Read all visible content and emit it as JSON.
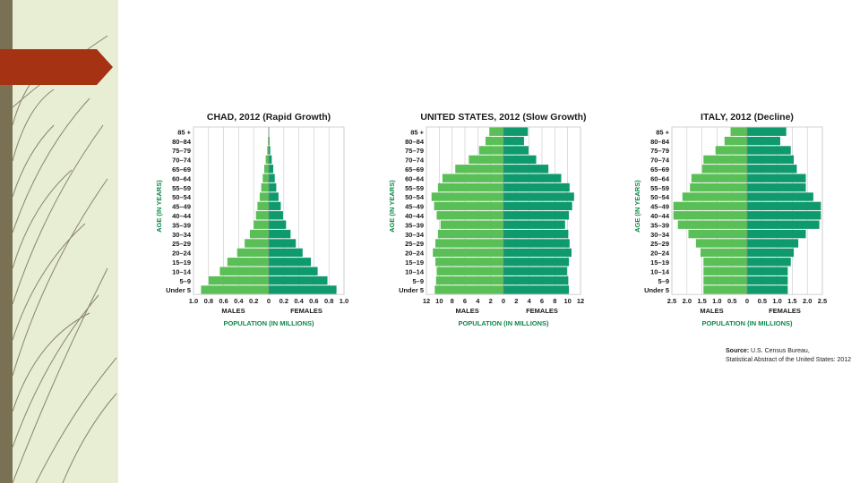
{
  "slide": {
    "source_label": "Source:",
    "source_line1": "U.S. Census Bureau,",
    "source_line2": "Statistical Abstract of the United States: 2012",
    "colors": {
      "male": "#5bbf57",
      "female": "#0f9a6e",
      "axis_text": "#1a1a1a",
      "green_label": "#0c8a4a",
      "grid": "#c8c8c8",
      "sidebar_bg": "#e7eed4",
      "sidebar_strip": "#7a7155",
      "accent": "#a63214"
    }
  },
  "chart_data": [
    {
      "type": "bar",
      "title": "CHAD, 2012 (Rapid Growth)",
      "ylabel": "AGE (IN YEARS)",
      "xlabel": "POPULATION (IN MILLIONS)",
      "male_label": "MALES",
      "female_label": "FEMALES",
      "categories": [
        "85 +",
        "80–84",
        "75–79",
        "70–74",
        "65–69",
        "60–64",
        "55–59",
        "50–54",
        "45–49",
        "40–44",
        "35–39",
        "30–34",
        "25–29",
        "20–24",
        "15–19",
        "10–14",
        "5–9",
        "Under 5"
      ],
      "series": [
        {
          "name": "MALES",
          "values": [
            0.005,
            0.01,
            0.02,
            0.04,
            0.06,
            0.08,
            0.1,
            0.12,
            0.15,
            0.17,
            0.2,
            0.25,
            0.32,
            0.42,
            0.55,
            0.65,
            0.8,
            0.9
          ]
        },
        {
          "name": "FEMALES",
          "values": [
            0.005,
            0.01,
            0.02,
            0.04,
            0.06,
            0.08,
            0.1,
            0.13,
            0.16,
            0.19,
            0.23,
            0.29,
            0.36,
            0.45,
            0.56,
            0.65,
            0.78,
            0.9
          ]
        }
      ],
      "ticks_left": [
        "1.0",
        "0.8",
        "0.6",
        "0.4",
        "0.2",
        "0"
      ],
      "ticks_right": [
        "0",
        "0.2",
        "0.4",
        "0.6",
        "0.8",
        "1.0"
      ],
      "xlim": [
        0,
        1.0
      ]
    },
    {
      "type": "bar",
      "title": "UNITED STATES, 2012 (Slow Growth)",
      "ylabel": "AGE (IN YEARS)",
      "xlabel": "POPULATION (IN MILLIONS)",
      "male_label": "MALES",
      "female_label": "FEMALES",
      "categories": [
        "85 +",
        "80–84",
        "75–79",
        "70–74",
        "65–69",
        "60–64",
        "55–59",
        "50–54",
        "45–49",
        "40–44",
        "35–39",
        "30–34",
        "25–29",
        "20–24",
        "15–19",
        "10–14",
        "5–9",
        "Under 5"
      ],
      "series": [
        {
          "name": "MALES",
          "values": [
            2.2,
            2.8,
            3.8,
            5.4,
            7.5,
            9.5,
            10.2,
            11.2,
            10.8,
            10.4,
            9.8,
            10.2,
            10.6,
            11.0,
            10.6,
            10.4,
            10.5,
            10.7
          ]
        },
        {
          "name": "FEMALES",
          "values": [
            3.8,
            3.2,
            3.9,
            5.1,
            7.0,
            9.0,
            10.3,
            11.0,
            10.7,
            10.2,
            9.6,
            10.1,
            10.3,
            10.6,
            10.2,
            9.9,
            10.1,
            10.2
          ]
        }
      ],
      "ticks_left": [
        "12",
        "10",
        "8",
        "6",
        "4",
        "2",
        "0"
      ],
      "ticks_right": [
        "0",
        "2",
        "4",
        "6",
        "8",
        "10",
        "12"
      ],
      "xlim": [
        0,
        12
      ]
    },
    {
      "type": "bar",
      "title": "ITALY, 2012 (Decline)",
      "ylabel": "AGE (IN YEARS)",
      "xlabel": "POPULATION (IN MILLIONS)",
      "male_label": "MALES",
      "female_label": "FEMALES",
      "categories": [
        "85 +",
        "80–84",
        "75–79",
        "70–74",
        "65–69",
        "60–64",
        "55–59",
        "50–54",
        "45–49",
        "40–44",
        "35–39",
        "30–34",
        "25–29",
        "20–24",
        "15–19",
        "10–14",
        "5–9",
        "Under 5"
      ],
      "series": [
        {
          "name": "MALES",
          "values": [
            0.55,
            0.75,
            1.05,
            1.45,
            1.5,
            1.85,
            1.9,
            2.15,
            2.45,
            2.45,
            2.3,
            1.95,
            1.7,
            1.55,
            1.45,
            1.45,
            1.45,
            1.45
          ]
        },
        {
          "name": "FEMALES",
          "values": [
            1.3,
            1.1,
            1.45,
            1.55,
            1.65,
            1.95,
            1.95,
            2.2,
            2.45,
            2.45,
            2.4,
            1.95,
            1.7,
            1.55,
            1.45,
            1.35,
            1.35,
            1.35
          ]
        }
      ],
      "ticks_left": [
        "2.5",
        "2.0",
        "1.5",
        "1.0",
        "0.5",
        "0"
      ],
      "ticks_right": [
        "0",
        "0.5",
        "1.0",
        "1.5",
        "2.0",
        "2.5"
      ],
      "xlim": [
        0,
        2.5
      ]
    }
  ]
}
